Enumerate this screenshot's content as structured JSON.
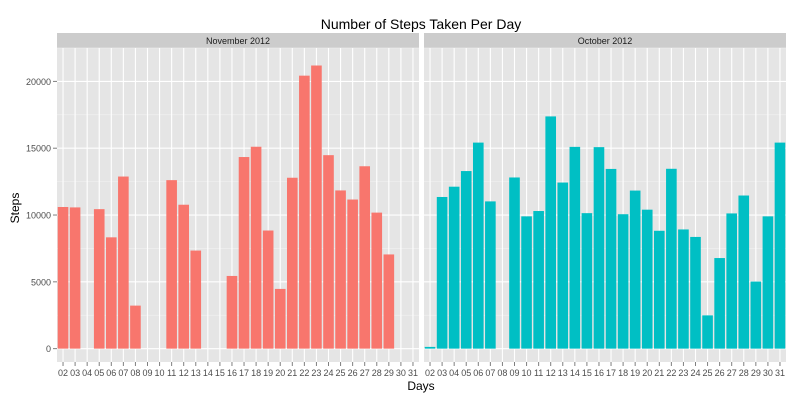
{
  "chart_data": {
    "type": "bar",
    "title": "Number of Steps Taken Per Day",
    "xlabel": "Days",
    "ylabel": "Steps",
    "ylim": [
      -1000,
      22500
    ],
    "yticks": [
      0,
      5000,
      10000,
      15000,
      20000
    ],
    "grid": true,
    "legend": "none",
    "categories": [
      "02",
      "03",
      "04",
      "05",
      "06",
      "07",
      "08",
      "09",
      "10",
      "11",
      "12",
      "13",
      "14",
      "15",
      "16",
      "17",
      "18",
      "19",
      "20",
      "21",
      "22",
      "23",
      "24",
      "25",
      "26",
      "27",
      "28",
      "29",
      "30",
      "31"
    ],
    "panels": [
      {
        "name": "November 2012",
        "color": "#F8766D",
        "values": [
          10600,
          10570,
          0,
          10440,
          8330,
          12880,
          3220,
          0,
          0,
          12610,
          10770,
          7340,
          0,
          0,
          5440,
          14340,
          15110,
          8840,
          4470,
          12790,
          20430,
          21190,
          14480,
          11840,
          11160,
          13650,
          10180,
          7050,
          0,
          0
        ]
      },
      {
        "name": "October 2012",
        "color": "#00BFC4",
        "values": [
          130,
          11350,
          12120,
          13290,
          15420,
          11020,
          0,
          12810,
          9900,
          10300,
          17380,
          12430,
          15100,
          10140,
          15080,
          13450,
          10060,
          11830,
          10400,
          8820,
          13460,
          8920,
          8360,
          2490,
          6780,
          10120,
          11460,
          5020,
          9900,
          15420
        ]
      }
    ]
  }
}
